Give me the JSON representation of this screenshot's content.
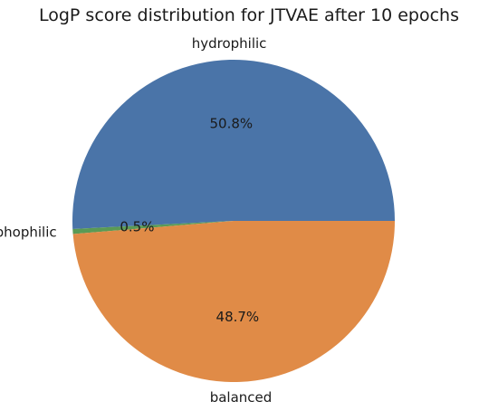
{
  "chart_data": {
    "type": "pie",
    "title": "LogP score distribution for JTVAE after 10 epochs",
    "slices": [
      {
        "label": "hydrophilic",
        "value": 50.8,
        "pct_label": "50.8%",
        "color": "#4a74a8"
      },
      {
        "label": "liphophilic",
        "value": 0.5,
        "pct_label": "0.5%",
        "color": "#5a9a55"
      },
      {
        "label": "balanced",
        "value": 48.7,
        "pct_label": "48.7%",
        "color": "#e08b47"
      }
    ],
    "start_angle_deg": 0,
    "direction": "counterclockwise",
    "legend": "none"
  }
}
